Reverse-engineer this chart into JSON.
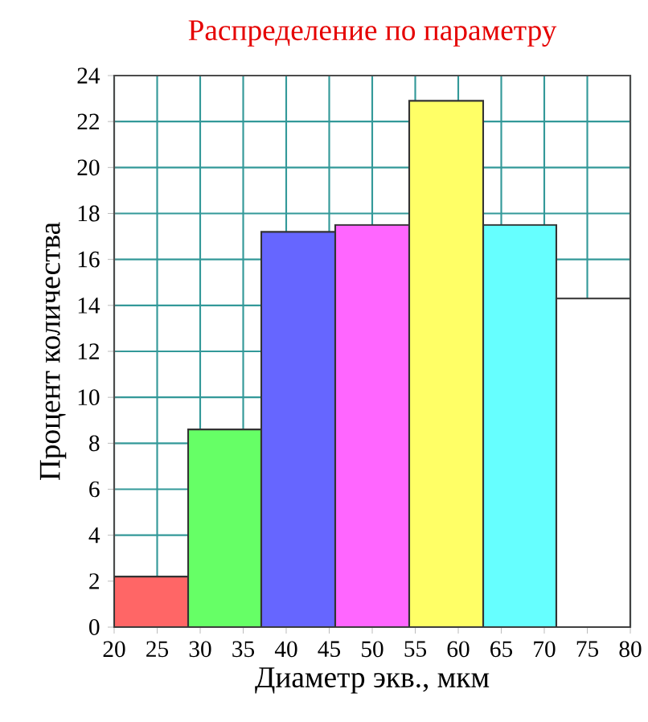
{
  "chart_data": {
    "type": "histogram",
    "title": "Распределение по параметру",
    "xlabel": "Диаметр экв., мкм",
    "ylabel": "Процент количества",
    "bins": [
      20,
      28.6,
      37.1,
      45.7,
      54.3,
      62.9,
      71.4,
      80
    ],
    "values": [
      2.2,
      8.6,
      17.2,
      17.5,
      22.9,
      17.5,
      14.3
    ],
    "colors": [
      "#ff6666",
      "#66ff66",
      "#6666ff",
      "#ff66ff",
      "#ffff66",
      "#66ffff",
      "#ffffff"
    ],
    "xlim": [
      20,
      80
    ],
    "xticks": [
      20,
      25,
      30,
      35,
      40,
      45,
      50,
      55,
      60,
      65,
      70,
      75,
      80
    ],
    "ylim": [
      0,
      24
    ],
    "yticks": [
      0,
      2,
      4,
      6,
      8,
      10,
      12,
      14,
      16,
      18,
      20,
      22,
      24
    ],
    "grid": true
  }
}
